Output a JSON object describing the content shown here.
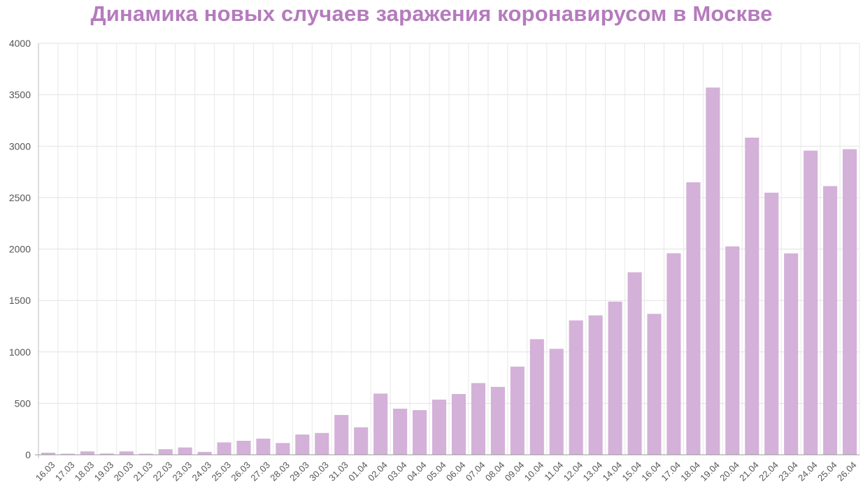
{
  "chart_data": {
    "type": "bar",
    "title": "Динамика новых случаев заражения коронавирусом в Москве",
    "xlabel": "",
    "ylabel": "",
    "ylim": [
      0,
      4000
    ],
    "yticks": [
      0,
      500,
      1000,
      1500,
      2000,
      2500,
      3000,
      3500,
      4000
    ],
    "grid": true,
    "bar_color": "#d4b1d9",
    "title_color": "#b57bbd",
    "categories": [
      "16.03",
      "17.03",
      "18.03",
      "19.03",
      "20.03",
      "21.03",
      "22.03",
      "23.03",
      "24.03",
      "25.03",
      "26.03",
      "27.03",
      "28.03",
      "29.03",
      "30.03",
      "31.03",
      "01.04",
      "02.04",
      "03.04",
      "04.04",
      "05.04",
      "06.04",
      "07.04",
      "08.04",
      "09.04",
      "10.04",
      "11.04",
      "12.04",
      "13.04",
      "14.04",
      "15.04",
      "16.04",
      "17.04",
      "18.04",
      "19.04",
      "20.04",
      "21.04",
      "22.04",
      "23.04",
      "24.04",
      "25.04",
      "26.04"
    ],
    "values": [
      20,
      0,
      33,
      12,
      33,
      6,
      54,
      71,
      28,
      120,
      136,
      157,
      114,
      197,
      212,
      387,
      267,
      595,
      448,
      434,
      536,
      591,
      697,
      660,
      857,
      1124,
      1030,
      1306,
      1355,
      1489,
      1774,
      1370,
      1959,
      2649,
      3570,
      2026,
      3083,
      2548,
      1958,
      2957,
      2612,
      2971
    ]
  }
}
